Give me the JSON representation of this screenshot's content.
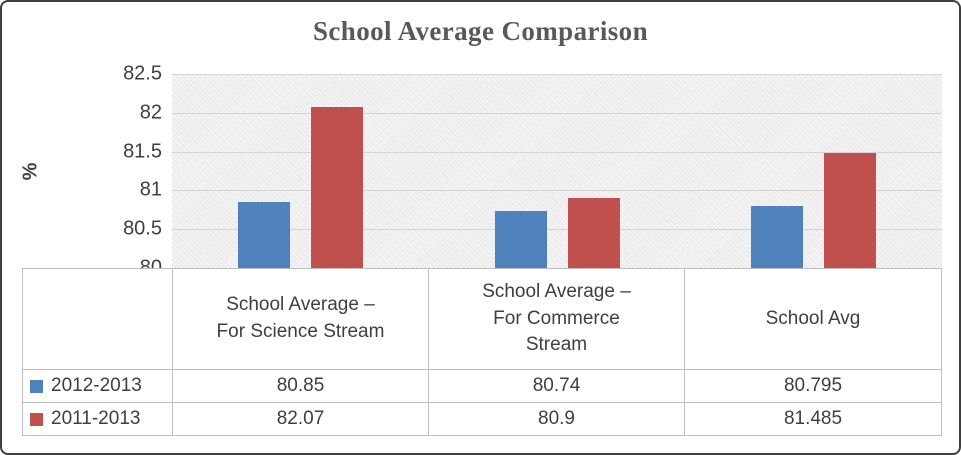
{
  "chart_data": {
    "type": "bar",
    "title": "School Average Comparison",
    "ylabel": "%",
    "categories": [
      "School Average – For Science Stream",
      "School Average – For Commerce Stream",
      "School Avg"
    ],
    "categories_wrapped": [
      "School Average –\nFor Science Stream",
      "School Average –\nFor Commerce\nStream",
      "School Avg"
    ],
    "series": [
      {
        "name": "2012-2013",
        "color": "#4F81BD",
        "values": [
          80.85,
          80.74,
          80.795
        ]
      },
      {
        "name": "2011-2013",
        "color": "#C0504D",
        "values": [
          82.07,
          80.9,
          81.485
        ]
      }
    ],
    "ylim": [
      80,
      82.5
    ],
    "ytick_step": 0.5,
    "yticks": [
      "80",
      "80.5",
      "81",
      "81.5",
      "82",
      "82.5"
    ],
    "grid": true,
    "legend_position": "data-table-left",
    "colors": {
      "grid": "#d4d4d4",
      "title": "#595959",
      "text": "#3f3f3f",
      "table_border": "#bfbfbf"
    }
  }
}
